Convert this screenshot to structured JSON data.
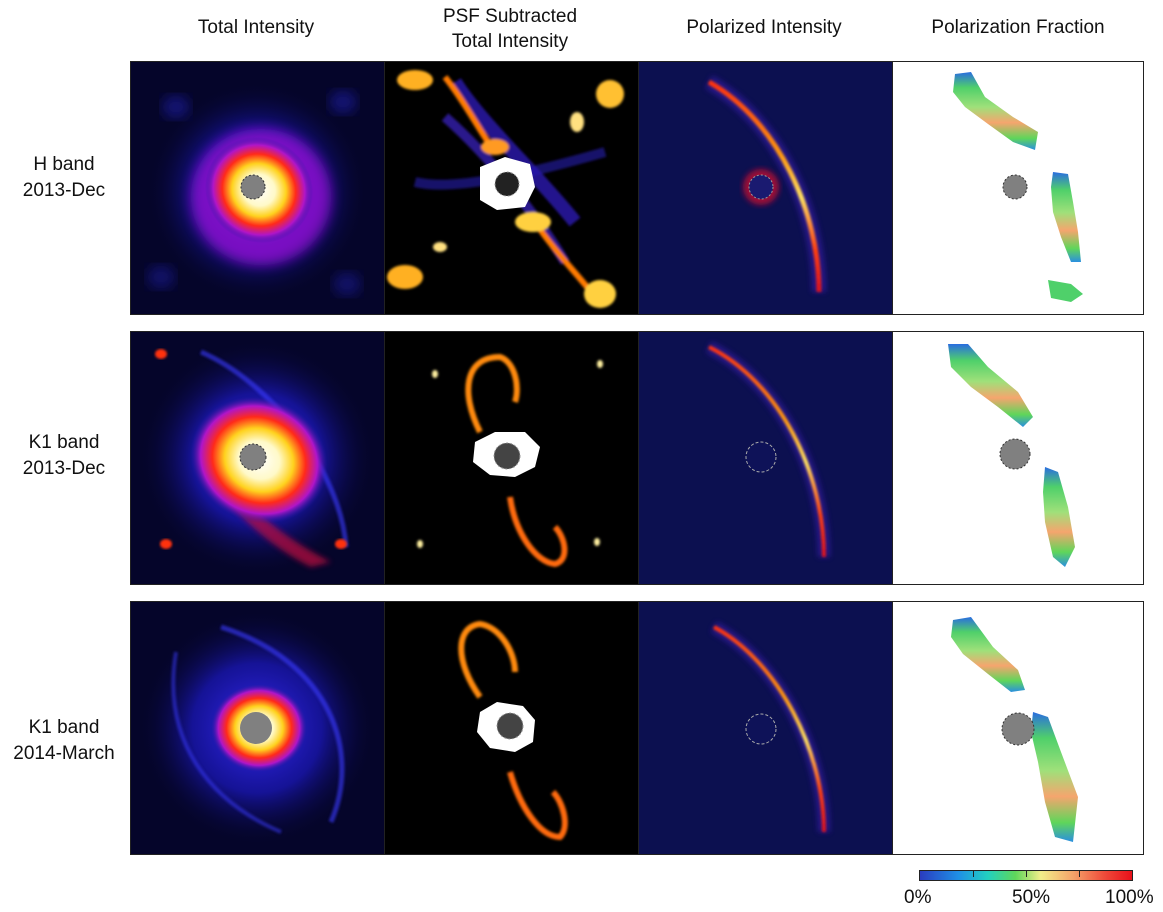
{
  "columns": [
    {
      "line1": "Total Intensity",
      "line2": ""
    },
    {
      "line1": "PSF Subtracted",
      "line2": "Total Intensity"
    },
    {
      "line1": "Polarized Intensity",
      "line2": ""
    },
    {
      "line1": "Polarization Fraction",
      "line2": ""
    }
  ],
  "rows": [
    {
      "band": "H band",
      "date": "2013-Dec"
    },
    {
      "band": "K1 band",
      "date": "2013-Dec"
    },
    {
      "band": "K1 band",
      "date": "2014-March"
    }
  ],
  "colorbar": {
    "label_min": "0%",
    "label_mid": "50%",
    "label_max": "100%",
    "colors": [
      "#2a3cbf",
      "#1f8fe6",
      "#22d0c0",
      "#5fd65a",
      "#f2ee8a",
      "#f5a46a",
      "#ef4b3a",
      "#e8101a"
    ]
  },
  "colors": {
    "total_intensity_bg": "#05052a",
    "psf_bg": "#000000",
    "polarized_bg": "#0c1050",
    "fraction_bg": "#ffffff",
    "occulter": "#808080"
  }
}
